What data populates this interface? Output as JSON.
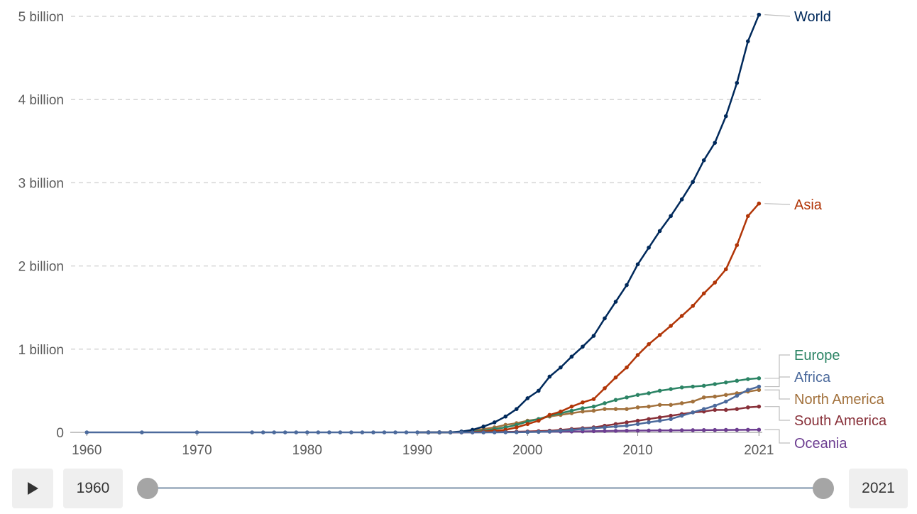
{
  "chart_data": {
    "type": "line",
    "xlim": [
      1958.5,
      2021.3
    ],
    "ylim": [
      0,
      5
    ],
    "x_ticks": [
      {
        "value": 1960,
        "label": "1960"
      },
      {
        "value": 1970,
        "label": "1970"
      },
      {
        "value": 1980,
        "label": "1980"
      },
      {
        "value": 1990,
        "label": "1990"
      },
      {
        "value": 2000,
        "label": "2000"
      },
      {
        "value": 2010,
        "label": "2010"
      },
      {
        "value": 2021,
        "label": "2021"
      }
    ],
    "y_ticks": [
      {
        "value": 0,
        "label": "0"
      },
      {
        "value": 1,
        "label": "1 billion"
      },
      {
        "value": 2,
        "label": "2 billion"
      },
      {
        "value": 3,
        "label": "3 billion"
      },
      {
        "value": 4,
        "label": "4 billion"
      },
      {
        "value": 5,
        "label": "5 billion"
      }
    ],
    "ylabel_units": "billion",
    "grid": "horizontal dashed",
    "early_years": [
      1960,
      1965,
      1970,
      1975,
      1976,
      1977,
      1978,
      1979,
      1980,
      1981,
      1982,
      1983,
      1984,
      1985,
      1986,
      1987,
      1988,
      1989
    ],
    "x": [
      1990,
      1991,
      1992,
      1993,
      1994,
      1995,
      1996,
      1997,
      1998,
      1999,
      2000,
      2001,
      2002,
      2003,
      2004,
      2005,
      2006,
      2007,
      2008,
      2009,
      2010,
      2011,
      2012,
      2013,
      2014,
      2015,
      2016,
      2017,
      2018,
      2019,
      2020,
      2021
    ],
    "series": [
      {
        "name": "World",
        "color": "#00295b",
        "values": [
          0,
          0.0001,
          0.0002,
          0.001,
          0.01,
          0.03,
          0.07,
          0.12,
          0.19,
          0.28,
          0.41,
          0.5,
          0.67,
          0.78,
          0.91,
          1.03,
          1.16,
          1.37,
          1.57,
          1.77,
          2.02,
          2.22,
          2.42,
          2.6,
          2.8,
          3.01,
          3.27,
          3.48,
          3.8,
          4.2,
          4.7,
          5.02
        ]
      },
      {
        "name": "Asia",
        "color": "#b13507",
        "values": [
          0,
          3e-05,
          0.0001,
          0.0005,
          0.002,
          0.005,
          0.01,
          0.02,
          0.03,
          0.06,
          0.1,
          0.14,
          0.21,
          0.25,
          0.31,
          0.36,
          0.4,
          0.53,
          0.66,
          0.78,
          0.93,
          1.06,
          1.17,
          1.28,
          1.4,
          1.52,
          1.67,
          1.8,
          1.96,
          2.25,
          2.6,
          2.75
        ]
      },
      {
        "name": "Europe",
        "color": "#2c8465",
        "values": [
          0,
          2e-05,
          0.0001,
          0.0003,
          0.005,
          0.01,
          0.02,
          0.04,
          0.06,
          0.09,
          0.13,
          0.16,
          0.2,
          0.23,
          0.26,
          0.29,
          0.31,
          0.35,
          0.39,
          0.42,
          0.45,
          0.47,
          0.5,
          0.52,
          0.54,
          0.55,
          0.56,
          0.58,
          0.6,
          0.62,
          0.64,
          0.65
        ]
      },
      {
        "name": "Africa",
        "color": "#4c6a9c",
        "values": [
          0,
          0,
          0,
          0,
          0,
          0,
          0,
          0.0001,
          0.0005,
          0.001,
          0.003,
          0.005,
          0.01,
          0.02,
          0.03,
          0.04,
          0.05,
          0.06,
          0.07,
          0.08,
          0.1,
          0.12,
          0.14,
          0.16,
          0.2,
          0.24,
          0.28,
          0.32,
          0.37,
          0.44,
          0.51,
          0.55
        ]
      },
      {
        "name": "North America",
        "color": "#a2713c",
        "values": [
          0,
          3e-05,
          0.0001,
          0.0005,
          0.005,
          0.02,
          0.04,
          0.06,
          0.09,
          0.11,
          0.14,
          0.16,
          0.19,
          0.21,
          0.23,
          0.25,
          0.26,
          0.28,
          0.28,
          0.28,
          0.3,
          0.31,
          0.33,
          0.33,
          0.35,
          0.37,
          0.42,
          0.43,
          0.45,
          0.47,
          0.49,
          0.51
        ]
      },
      {
        "name": "South America",
        "color": "#883039",
        "values": [
          0,
          0,
          0,
          0,
          0.0001,
          0.0005,
          0.001,
          0.003,
          0.005,
          0.008,
          0.01,
          0.015,
          0.02,
          0.03,
          0.04,
          0.05,
          0.06,
          0.08,
          0.1,
          0.12,
          0.14,
          0.16,
          0.18,
          0.2,
          0.22,
          0.24,
          0.25,
          0.27,
          0.27,
          0.28,
          0.3,
          0.31
        ]
      },
      {
        "name": "Oceania",
        "color": "#6d3e91",
        "values": [
          0,
          0,
          0,
          0.0001,
          0.0005,
          0.001,
          0.002,
          0.003,
          0.004,
          0.005,
          0.006,
          0.007,
          0.008,
          0.009,
          0.01,
          0.012,
          0.014,
          0.016,
          0.018,
          0.02,
          0.021,
          0.022,
          0.023,
          0.024,
          0.025,
          0.026,
          0.027,
          0.028,
          0.029,
          0.03,
          0.031,
          0.032
        ]
      }
    ],
    "legend_placement": "right, end-of-line labels"
  },
  "controls": {
    "play_icon": "play-icon",
    "start_year": "1960",
    "end_year": "2021"
  }
}
